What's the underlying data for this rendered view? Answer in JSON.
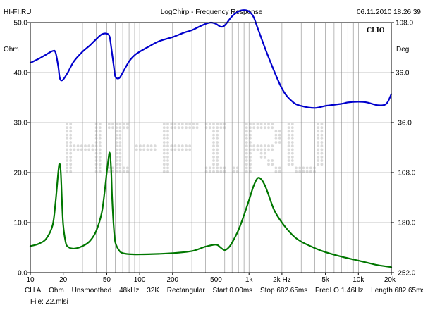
{
  "header": {
    "left": "HI-FI.RU",
    "center": "LogChirp - Frequency Response",
    "right": "06.11.2010 18.26.39"
  },
  "brand": "CLIO",
  "watermark": "HI-FI.RU",
  "settings": {
    "channel": "CH A",
    "unit": "Ohm",
    "smoothing": "Unsmoothed",
    "sample_rate": "48kHz",
    "fft_size": "32K",
    "window": "Rectangular",
    "start": "Start 0.00ms",
    "stop": "Stop 682.65ms",
    "freq_lo": "FreqLO 1.46Hz",
    "length": "Length 682.65ms"
  },
  "file": "File: Z2.mlsi",
  "chart_data": {
    "type": "line",
    "x_scale": "log",
    "xlim": [
      10,
      20000
    ],
    "x_ticks": [
      {
        "value": 10,
        "label": "10"
      },
      {
        "value": 20,
        "label": "20"
      },
      {
        "value": 50,
        "label": "50"
      },
      {
        "value": 100,
        "label": "100"
      },
      {
        "value": 200,
        "label": "200"
      },
      {
        "value": 500,
        "label": "500"
      },
      {
        "value": 1000,
        "label": "1k"
      },
      {
        "value": 2000,
        "label": "2k Hz"
      },
      {
        "value": 5000,
        "label": "5k"
      },
      {
        "value": 10000,
        "label": "10k"
      },
      {
        "value": 20000,
        "label": "20k"
      }
    ],
    "ylim_left": [
      0,
      50
    ],
    "left_unit": "Ohm",
    "y_ticks_left": [
      "50.0",
      "40.0",
      "30.0",
      "20.0",
      "10.0",
      "0.0"
    ],
    "ylim_right": [
      -252,
      108
    ],
    "right_unit": "Deg",
    "y_ticks_right": [
      "108.0",
      "36.0",
      "-36.0",
      "-108.0",
      "-180.0",
      "-252.0"
    ],
    "grid": true,
    "series": [
      {
        "axis": "right",
        "color": "#0000cc",
        "x": [
          10,
          12,
          14,
          16,
          17,
          18,
          18.5,
          19,
          20,
          22,
          25,
          30,
          35,
          40,
          45,
          50,
          53,
          55,
          58,
          60,
          65,
          70,
          80,
          90,
          100,
          120,
          150,
          200,
          250,
          300,
          350,
          400,
          450,
          500,
          550,
          600,
          700,
          800,
          900,
          1000,
          1100,
          1200,
          1500,
          2000,
          2500,
          3000,
          4000,
          5000,
          7000,
          8000,
          10000,
          12000,
          15000,
          18000,
          20000
        ],
        "y": [
          50,
          56,
          62,
          67,
          65,
          45,
          30,
          25,
          26,
          36,
          52,
          66,
          75,
          84,
          91,
          92,
          88,
          72,
          45,
          30,
          28,
          36,
          52,
          61,
          66,
          73,
          81,
          87,
          93,
          97,
          102,
          106,
          108,
          106,
          102,
          104,
          117,
          124,
          126,
          124,
          116,
          100,
          59,
          13,
          -6,
          -12,
          -15,
          -12,
          -9,
          -7,
          -6,
          -7,
          -11,
          -9,
          5
        ]
      },
      {
        "axis": "left",
        "color": "#007700",
        "x": [
          10,
          12,
          14,
          16,
          17,
          18,
          18.5,
          19,
          19.5,
          20,
          21,
          22,
          25,
          30,
          35,
          40,
          45,
          48,
          50,
          52,
          53,
          54,
          55,
          56,
          58,
          60,
          65,
          70,
          80,
          100,
          150,
          200,
          300,
          400,
          500,
          550,
          600,
          650,
          700,
          800,
          900,
          1000,
          1100,
          1200,
          1300,
          1400,
          1500,
          1700,
          2000,
          2500,
          3000,
          4000,
          5000,
          7000,
          10000,
          12000,
          15000,
          20000
        ],
        "y": [
          5.3,
          5.8,
          6.8,
          9.5,
          14,
          20,
          21.8,
          20,
          14,
          9.5,
          6.2,
          5.2,
          4.8,
          5.3,
          6.3,
          8.3,
          12,
          16.5,
          20,
          23,
          24,
          23,
          20,
          15,
          9,
          6,
          4.4,
          3.9,
          3.7,
          3.65,
          3.75,
          3.9,
          4.3,
          5.2,
          5.6,
          5.0,
          4.5,
          5.0,
          6.0,
          8.5,
          11.5,
          14.5,
          17.3,
          18.9,
          18.6,
          17.4,
          15.7,
          12.5,
          10,
          7.5,
          6.2,
          4.9,
          4.1,
          3.2,
          2.4,
          2.0,
          1.5,
          1.1
        ]
      }
    ]
  }
}
